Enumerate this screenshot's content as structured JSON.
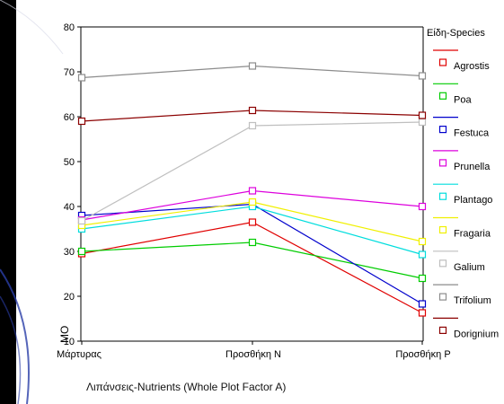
{
  "colors": {
    "background_outer": "#000000",
    "panel": "#ffffff",
    "axis": "#000000",
    "decor_blue": "#2b3ea8"
  },
  "chart_data": {
    "type": "line",
    "title": "",
    "xlabel": "Λιπάνσεις-Nutrients (Whole Plot Factor A)",
    "ylabel": "ΜΟ",
    "categories": [
      "Μάρτυρας",
      "Προσθήκη Ν",
      "Προσθήκη Ρ"
    ],
    "ylim": [
      10,
      80
    ],
    "yticks": [
      10,
      20,
      30,
      40,
      50,
      60,
      70,
      80
    ],
    "grid": false,
    "legend": {
      "title": "Είδη-Species",
      "placement": "right"
    },
    "series": [
      {
        "name": "Agrostis",
        "color": "#e00000",
        "values": [
          29.5,
          36.5,
          16.3
        ]
      },
      {
        "name": "Poa",
        "color": "#00cc00",
        "values": [
          30.0,
          32.0,
          24.0
        ]
      },
      {
        "name": "Festuca",
        "color": "#0000cc",
        "values": [
          38.0,
          40.5,
          18.3
        ]
      },
      {
        "name": "Prunella",
        "color": "#dd00dd",
        "values": [
          37.0,
          43.5,
          40.0
        ]
      },
      {
        "name": "Plantago",
        "color": "#00dddd",
        "values": [
          35.0,
          40.0,
          29.3
        ]
      },
      {
        "name": "Fragaria",
        "color": "#f0f000",
        "values": [
          35.8,
          41.0,
          32.2
        ]
      },
      {
        "name": "Galium",
        "color": "#bfbfbf",
        "values": [
          36.8,
          58.0,
          58.8
        ]
      },
      {
        "name": "Trifolium",
        "color": "#8c8c8c",
        "values": [
          68.7,
          71.3,
          69.1
        ]
      },
      {
        "name": "Dorignium",
        "color": "#8b0000",
        "values": [
          59.0,
          61.4,
          60.3
        ]
      }
    ]
  }
}
